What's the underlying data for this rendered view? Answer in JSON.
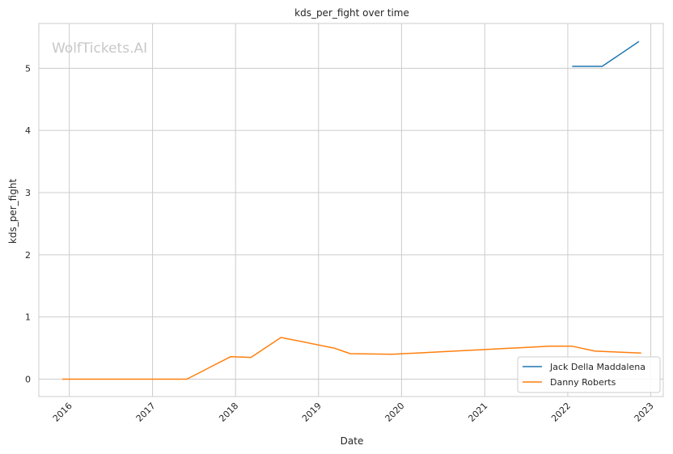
{
  "chart_data": {
    "type": "line",
    "title": "kds_per_fight over time",
    "xlabel": "Date",
    "ylabel": "kds_per_fight",
    "watermark": "WolfTickets.AI",
    "x_ticks": [
      "2016",
      "2017",
      "2018",
      "2019",
      "2020",
      "2021",
      "2022",
      "2023"
    ],
    "y_ticks": [
      "0",
      "1",
      "2",
      "3",
      "4",
      "5"
    ],
    "xlim": [
      "2015-08-20",
      "2023-02-25"
    ],
    "ylim": [
      -0.28,
      5.72
    ],
    "grid": true,
    "legend_position": "lower right",
    "series": [
      {
        "name": "Jack Della Maddalena",
        "color": "#1f77b4",
        "points": [
          {
            "x": "2022-01-20",
            "y": 5.03
          },
          {
            "x": "2022-06-01",
            "y": 5.03
          },
          {
            "x": "2022-11-10",
            "y": 5.43
          }
        ]
      },
      {
        "name": "Danny Roberts",
        "color": "#ff7f0e",
        "points": [
          {
            "x": "2015-12-01",
            "y": 0.0
          },
          {
            "x": "2016-06-01",
            "y": 0.0
          },
          {
            "x": "2017-01-01",
            "y": 0.0
          },
          {
            "x": "2017-06-01",
            "y": 0.0
          },
          {
            "x": "2017-12-10",
            "y": 0.36
          },
          {
            "x": "2018-03-10",
            "y": 0.35
          },
          {
            "x": "2018-07-20",
            "y": 0.67
          },
          {
            "x": "2019-03-10",
            "y": 0.5
          },
          {
            "x": "2019-05-20",
            "y": 0.41
          },
          {
            "x": "2019-11-20",
            "y": 0.4
          },
          {
            "x": "2021-10-15",
            "y": 0.53
          },
          {
            "x": "2022-01-20",
            "y": 0.53
          },
          {
            "x": "2022-05-01",
            "y": 0.45
          },
          {
            "x": "2022-11-20",
            "y": 0.42
          }
        ]
      }
    ]
  }
}
